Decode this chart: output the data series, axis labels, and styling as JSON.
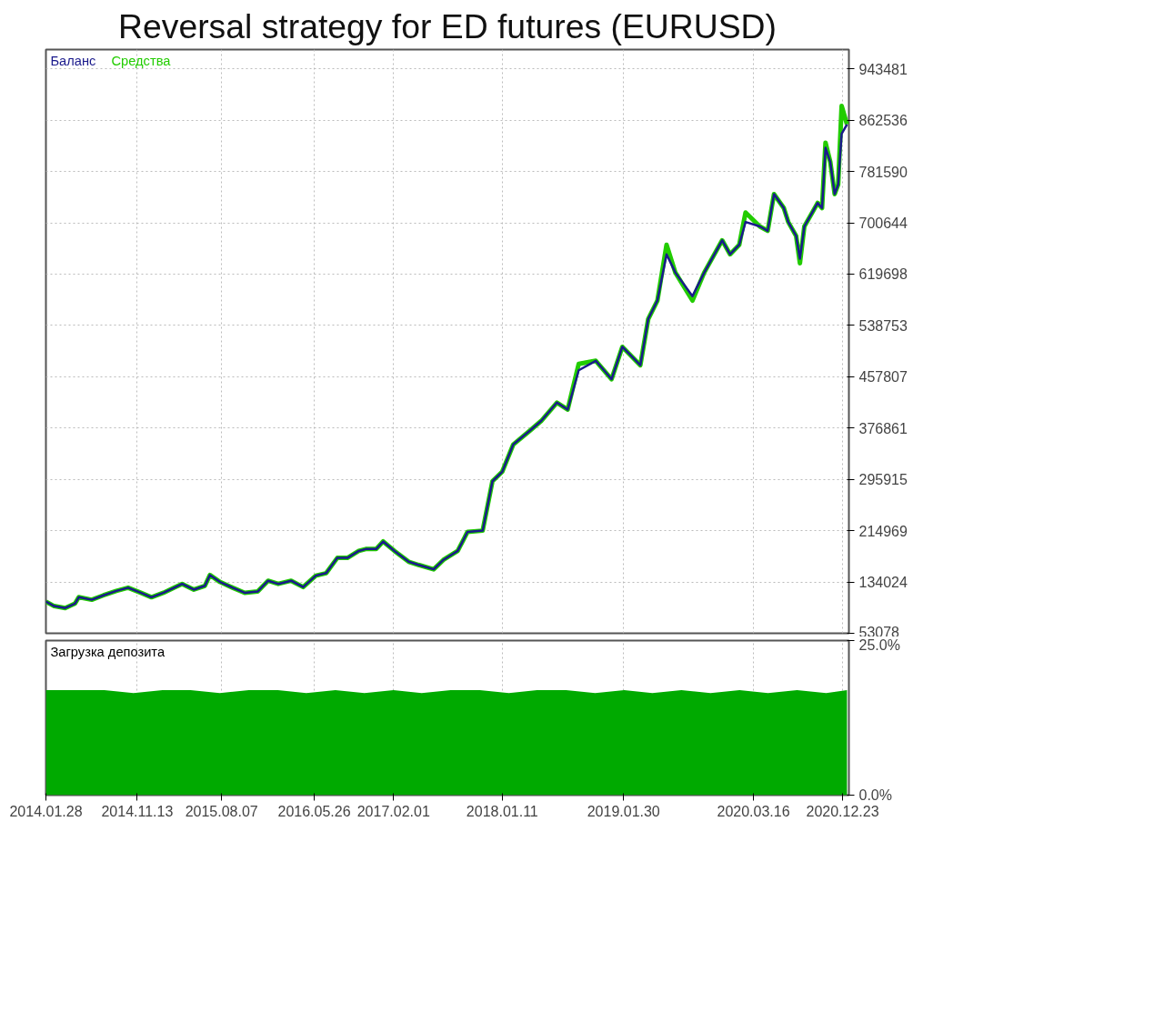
{
  "chart_data": [
    {
      "type": "line",
      "title": "Reversal strategy for ED futures (EURUSD)",
      "legend": "top left",
      "grid": true,
      "tick_labels": "y",
      "x": [
        "2014-01-28",
        "2014-02-23",
        "2014-03-30",
        "2014-04-30",
        "2014-05-12",
        "2014-06-22",
        "2014-07-29",
        "2014-09-08",
        "2014-10-15",
        "2014-11-24",
        "2014-12-28",
        "2015-02-04",
        "2015-03-10",
        "2015-04-04",
        "2015-05-11",
        "2015-06-15",
        "2015-07-01",
        "2015-08-02",
        "2015-09-11",
        "2015-10-19",
        "2015-11-29",
        "2016-01-01",
        "2016-02-02",
        "2016-03-14",
        "2016-04-21",
        "2016-05-31",
        "2016-07-03",
        "2016-08-07",
        "2016-09-08",
        "2016-10-14",
        "2016-11-05",
        "2016-12-08",
        "2016-12-30",
        "2017-02-04",
        "2017-03-21",
        "2017-04-21",
        "2017-06-08",
        "2017-07-09",
        "2017-08-23",
        "2017-09-23",
        "2017-11-10",
        "2017-12-11",
        "2018-01-11",
        "2018-02-15",
        "2018-04-09",
        "2018-05-14",
        "2018-07-03",
        "2018-08-06",
        "2018-09-10",
        "2018-11-03",
        "2018-12-23",
        "2019-01-26",
        "2019-03-24",
        "2019-04-18",
        "2019-05-17",
        "2019-06-15",
        "2019-07-13",
        "2019-09-05",
        "2019-10-12",
        "2019-12-08",
        "2020-01-02",
        "2020-01-31",
        "2020-02-20",
        "2020-04-05",
        "2020-04-30",
        "2020-05-20",
        "2020-06-20",
        "2020-07-04",
        "2020-07-29",
        "2020-08-10",
        "2020-08-24",
        "2020-09-18",
        "2020-10-05",
        "2020-10-19",
        "2020-10-30",
        "2020-11-14",
        "2020-11-28",
        "2020-12-09",
        "2020-12-20",
        "2021-01-06"
      ],
      "series": [
        {
          "name": "Средства",
          "color": "#22cc00",
          "values": [
            103000,
            96000,
            93000,
            100000,
            110000,
            106000,
            113000,
            120000,
            125000,
            117000,
            110000,
            117000,
            125000,
            131000,
            122000,
            128000,
            145000,
            134000,
            125000,
            117000,
            119000,
            136000,
            131000,
            136000,
            126000,
            144000,
            148000,
            172000,
            172000,
            183000,
            186000,
            186000,
            198000,
            183000,
            166000,
            161000,
            154000,
            169000,
            183000,
            213000,
            215000,
            293000,
            308000,
            351000,
            373000,
            388000,
            417000,
            406000,
            478000,
            483000,
            454000,
            505000,
            476000,
            549000,
            578000,
            666000,
            622000,
            578000,
            622000,
            673000,
            651000,
            666000,
            717000,
            695000,
            688000,
            746000,
            724000,
            702000,
            680000,
            637000,
            695000,
            717000,
            732000,
            724000,
            827000,
            797000,
            746000,
            761000,
            885000,
            856000
          ]
        },
        {
          "name": "Баланс",
          "color": "#1a1a8c",
          "values": [
            103000,
            96000,
            93000,
            100000,
            110000,
            106000,
            113000,
            120000,
            125000,
            117000,
            110000,
            117000,
            125000,
            131000,
            122000,
            128000,
            145000,
            134000,
            125000,
            117000,
            119000,
            136000,
            131000,
            136000,
            126000,
            144000,
            148000,
            172000,
            172000,
            183000,
            186000,
            186000,
            198000,
            183000,
            166000,
            161000,
            154000,
            169000,
            183000,
            213000,
            215000,
            293000,
            308000,
            351000,
            373000,
            388000,
            417000,
            406000,
            468000,
            483000,
            454000,
            505000,
            476000,
            549000,
            578000,
            651000,
            622000,
            585000,
            622000,
            673000,
            651000,
            666000,
            702000,
            695000,
            688000,
            746000,
            724000,
            702000,
            680000,
            644000,
            695000,
            717000,
            732000,
            724000,
            819000,
            797000,
            746000,
            761000,
            841000,
            856000
          ]
        }
      ],
      "xlim": [
        "2014-01-28",
        "2021-01-12"
      ],
      "xticks": [
        {
          "value": "2014-01-28",
          "label": null
        },
        {
          "value": "2014-11-13",
          "label": null
        },
        {
          "value": "2015-08-07",
          "label": null
        },
        {
          "value": "2016-05-26",
          "label": null
        },
        {
          "value": "2017-02-01",
          "label": null
        },
        {
          "value": "2018-01-11",
          "label": null
        },
        {
          "value": "2019-01-30",
          "label": null
        },
        {
          "value": "2020-03-16",
          "label": null
        },
        {
          "value": "2020-12-23",
          "label": null
        }
      ],
      "ylim": [
        53078,
        974000
      ],
      "yticks": [
        53078,
        134024,
        214969,
        295915,
        376861,
        457807,
        538753,
        619698,
        700644,
        781590,
        862536,
        943481
      ]
    },
    {
      "type": "area",
      "title": "Загрузка депозита",
      "grid": "x",
      "x": [
        "2014-01-28",
        "2014-05-01",
        "2014-08-01",
        "2014-11-01",
        "2015-02-01",
        "2015-05-01",
        "2015-08-01",
        "2015-11-01",
        "2016-02-01",
        "2016-05-01",
        "2016-08-01",
        "2016-11-01",
        "2017-02-01",
        "2017-05-01",
        "2017-08-01",
        "2017-11-01",
        "2018-02-01",
        "2018-05-01",
        "2018-08-01",
        "2018-11-01",
        "2019-02-01",
        "2019-05-01",
        "2019-08-01",
        "2019-11-01",
        "2020-02-01",
        "2020-05-01",
        "2020-08-01",
        "2020-11-01",
        "2021-01-06"
      ],
      "series": [
        {
          "color": "#00aa00",
          "values": [
            17,
            17,
            17,
            16.5,
            17,
            17,
            16.5,
            17,
            17,
            16.5,
            17,
            16.5,
            17,
            16.5,
            17,
            17,
            16.5,
            17,
            17,
            16.5,
            17,
            16.5,
            17,
            16.5,
            17,
            16.5,
            17,
            16.5,
            17
          ]
        }
      ],
      "xlim": [
        "2014-01-28",
        "2021-01-12"
      ],
      "xticks": [
        {
          "value": "2014-01-28",
          "label": "2014.01.28"
        },
        {
          "value": "2014-11-13",
          "label": "2014.11.13"
        },
        {
          "value": "2015-08-07",
          "label": "2015.08.07"
        },
        {
          "value": "2016-05-26",
          "label": "2016.05.26"
        },
        {
          "value": "2017-02-01",
          "label": "2017.02.01"
        },
        {
          "value": "2018-01-11",
          "label": "2018.01.11"
        },
        {
          "value": "2019-01-30",
          "label": "2019.01.30"
        },
        {
          "value": "2020-03-16",
          "label": "2020.03.16"
        },
        {
          "value": "2020-12-23",
          "label": "2020.12.23"
        }
      ],
      "ylim": [
        0,
        25
      ],
      "yticks": [
        {
          "value": 0,
          "label": "0.0%"
        },
        {
          "value": 25,
          "label": "25.0%"
        }
      ]
    }
  ]
}
